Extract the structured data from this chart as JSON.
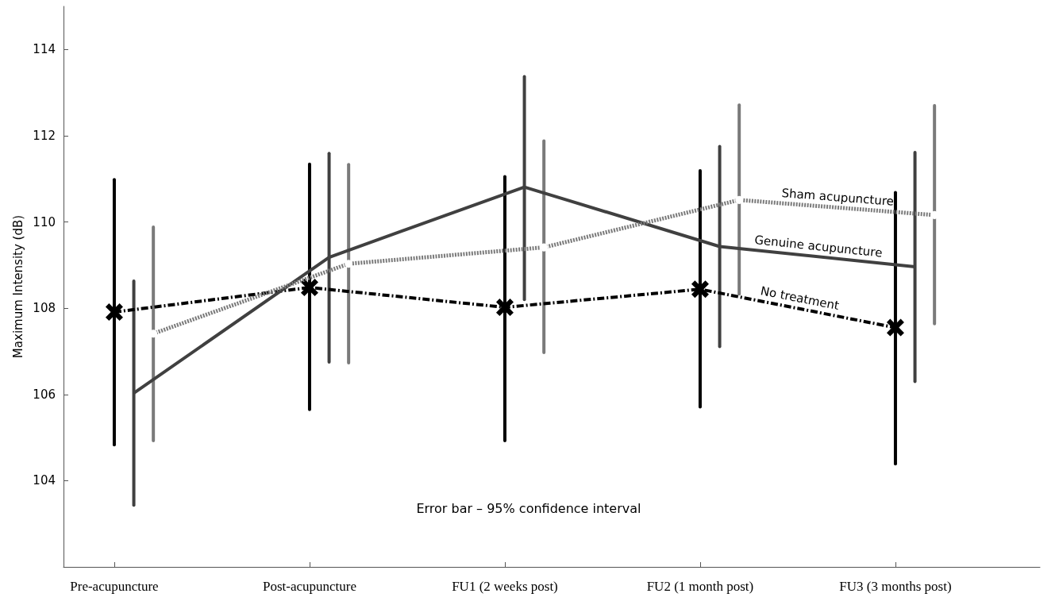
{
  "chart_data": {
    "type": "line",
    "ylabel": "Maximum Intensity (dB)",
    "categories": [
      "Pre-acupuncture",
      "Post-acupuncture",
      "FU1 (2 weeks post)",
      "FU2 (1 month post)",
      "FU3 (3 months post)"
    ],
    "ylim": [
      102,
      115
    ],
    "yticks": [
      104,
      106,
      108,
      110,
      112,
      114
    ],
    "legend": false,
    "annotations": [
      "Error bar – 95% confidence interval"
    ],
    "series": [
      {
        "name": "No treatment",
        "color": "#000000",
        "marker": "cross",
        "line_style": "dashed",
        "values": [
          107.91,
          108.48,
          108.02,
          108.44,
          107.55
        ],
        "errors": [
          [
            104.83,
            110.98
          ],
          [
            105.65,
            111.34
          ],
          [
            104.93,
            111.05
          ],
          [
            105.71,
            111.19
          ],
          [
            104.39,
            110.68
          ]
        ]
      },
      {
        "name": "Genuine acupuncture",
        "color": "#404040",
        "marker": "none",
        "line_style": "solid",
        "values": [
          106.03,
          109.18,
          110.81,
          109.43,
          108.96
        ],
        "errors": [
          [
            103.43,
            108.63
          ],
          [
            106.75,
            111.59
          ],
          [
            108.2,
            113.37
          ],
          [
            107.11,
            111.75
          ],
          [
            106.3,
            111.61
          ]
        ]
      },
      {
        "name": "Sham acupuncture",
        "color": "#7a7a7a",
        "marker": "circle",
        "line_style": "dotted",
        "values": [
          107.41,
          109.03,
          109.41,
          110.51,
          110.16
        ],
        "errors": [
          [
            104.93,
            109.88
          ],
          [
            106.73,
            111.33
          ],
          [
            106.97,
            111.88
          ],
          [
            108.33,
            112.71
          ],
          [
            107.64,
            112.7
          ]
        ]
      }
    ]
  }
}
